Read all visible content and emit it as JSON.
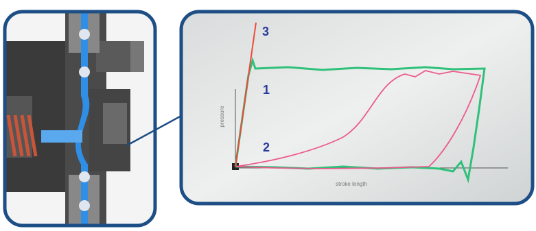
{
  "graph": {
    "curves": [
      {
        "label": "3"
      },
      {
        "label": "1"
      },
      {
        "label": "2"
      }
    ],
    "y_axis_label": "pressure",
    "x_axis_label": "stroke length"
  }
}
